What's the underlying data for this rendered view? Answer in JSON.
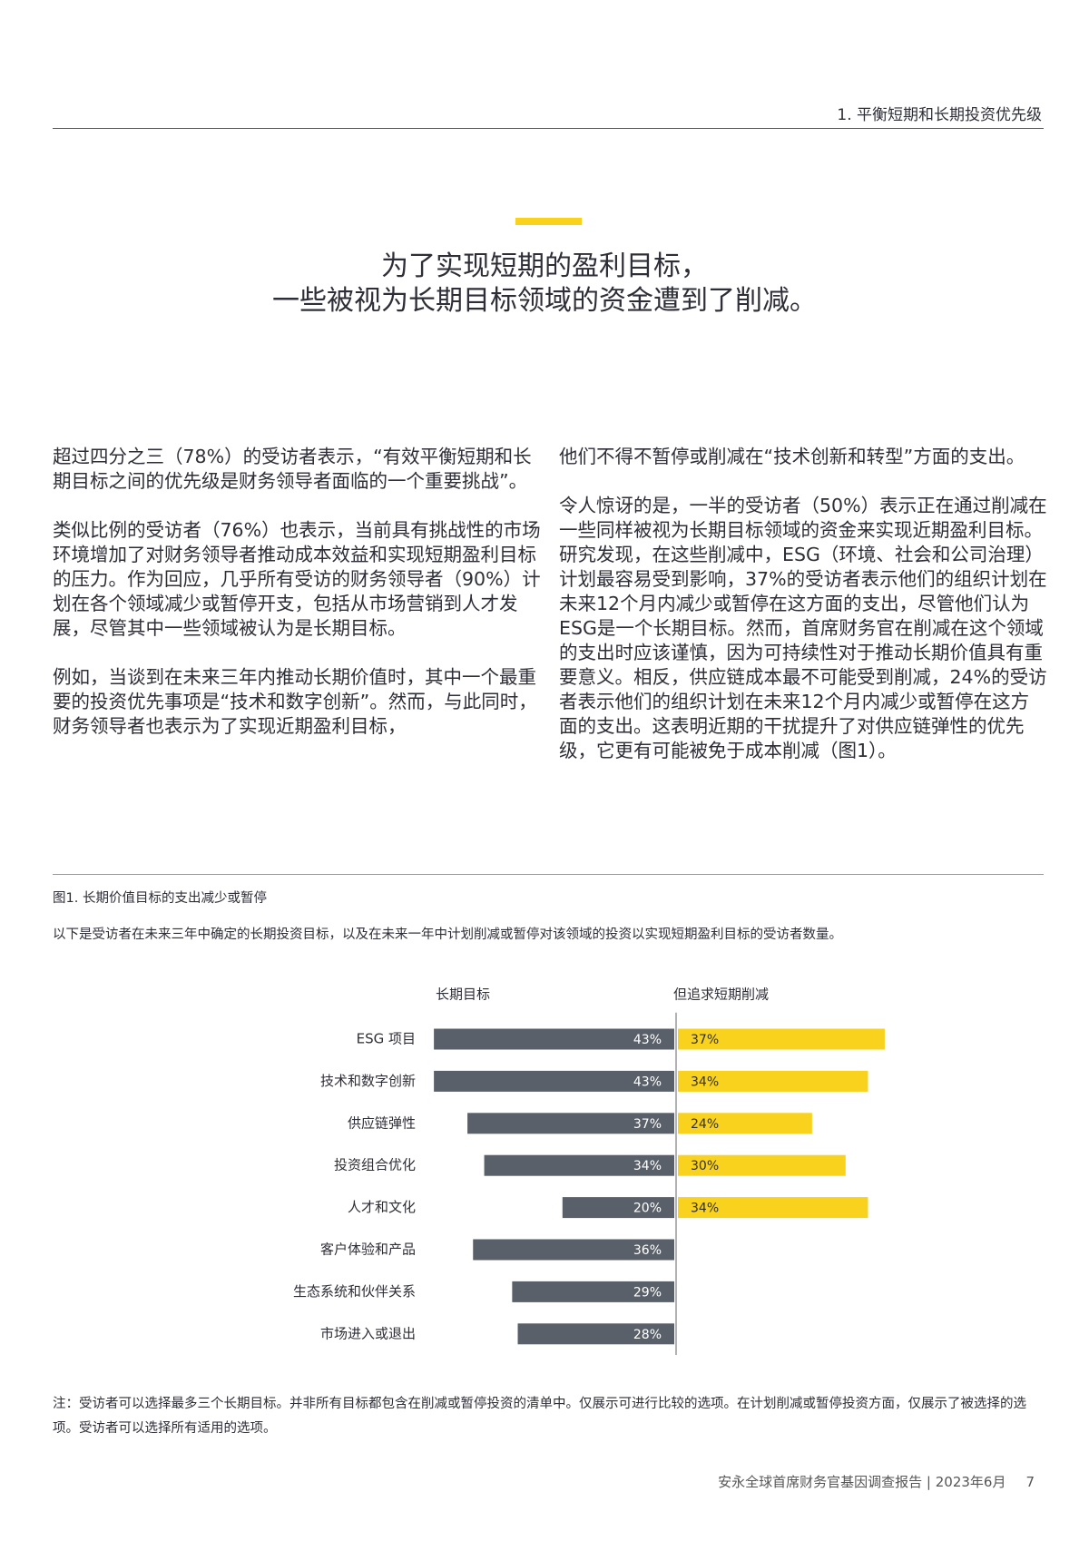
{
  "header": {
    "section": "1. 平衡短期和长期投资优先级"
  },
  "headline": [
    "为了实现短期的盈利目标，",
    "一些被视为长期目标领域的资金遭到了削减。"
  ],
  "left_column": [
    "超过四分之三（78%）的受访者表示，“有效平衡短期和长期目标之间的优先级是财务领导者面临的一个重要挑战”。",
    "类似比例的受访者（76%）也表示，当前具有挑战性的市场环境增加了对财务领导者推动成本效益和实现短期盈利目标的压力。作为回应，几乎所有受访的财务领导者（90%）计划在各个领域减少或暂停开支，包括从市场营销到人才发展，尽管其中一些领域被认为是长期目标。",
    "例如，当谈到在未来三年内推动长期价值时，其中一个最重要的投资优先事项是“技术和数字创新”。然而，与此同时，财务领导者也表示为了实现近期盈利目标，"
  ],
  "right_column": [
    "他们不得不暂停或削减在“技术创新和转型”方面的支出。",
    "令人惊讶的是，一半的受访者（50%）表示正在通过削减在一些同样被视为长期目标领域的资金来实现近期盈利目标。研究发现，在这些削减中，ESG（环境、社会和公司治理）计划最容易受到影响，37%的受访者表示他们的组织计划在未来12个月内减少或暂停在这方面的支出，尽管他们认为ESG是一个长期目标。然而，首席财务官在削减在这个领域的支出时应该谨慎，因为可持续性对于推动长期价值具有重要意义。相反，供应链成本最不可能受到削减，24%的受访者表示他们的组织计划在未来12个月内减少或暂停在这方面的支出。这表明近期的干扰提升了对供应链弹性的优先级，它更有可能被免于成本削减（图1）。"
  ],
  "figure": {
    "title": "图1. 长期价值目标的支出减少或暂停",
    "subtitle": "以下是受访者在未来三年中确定的长期投资目标，以及在未来一年中计划削减或暂停对该领域的投资以实现短期盈利目标的受访者数量。",
    "note": "注：受访者可以选择最多三个长期目标。并非所有目标都包含在削减或暂停投资的清单中。仅展示可进行比较的选项。在计划削减或暂停投资方面，仅展示了被选择的选项。受访者可以选择所有适用的选项。"
  },
  "chart_data": {
    "type": "bar",
    "categories": [
      "ESG 项目",
      "技术和数字创新",
      "供应链弹性",
      "投资组合优化",
      "人才和文化",
      "客户体验和产品",
      "生态系统和伙伴关系",
      "市场进入或退出"
    ],
    "series": [
      {
        "name": "长期目标",
        "color": "#5a6069",
        "values": [
          43,
          43,
          37,
          34,
          20,
          36,
          29,
          28
        ],
        "value_labels": [
          "43%",
          "43%",
          "37%",
          "34%",
          "20%",
          "36%",
          "29%",
          "28%"
        ]
      },
      {
        "name": "但追求短期削减",
        "color": "#f8d21c",
        "values": [
          37,
          34,
          24,
          30,
          34,
          null,
          null,
          null
        ],
        "value_labels": [
          "37%",
          "34%",
          "24%",
          "30%",
          "34%",
          null,
          null,
          null
        ]
      }
    ]
  },
  "footer": {
    "report": "安永全球首席财务官基因调查报告 | 2023年6月",
    "page": "7"
  }
}
